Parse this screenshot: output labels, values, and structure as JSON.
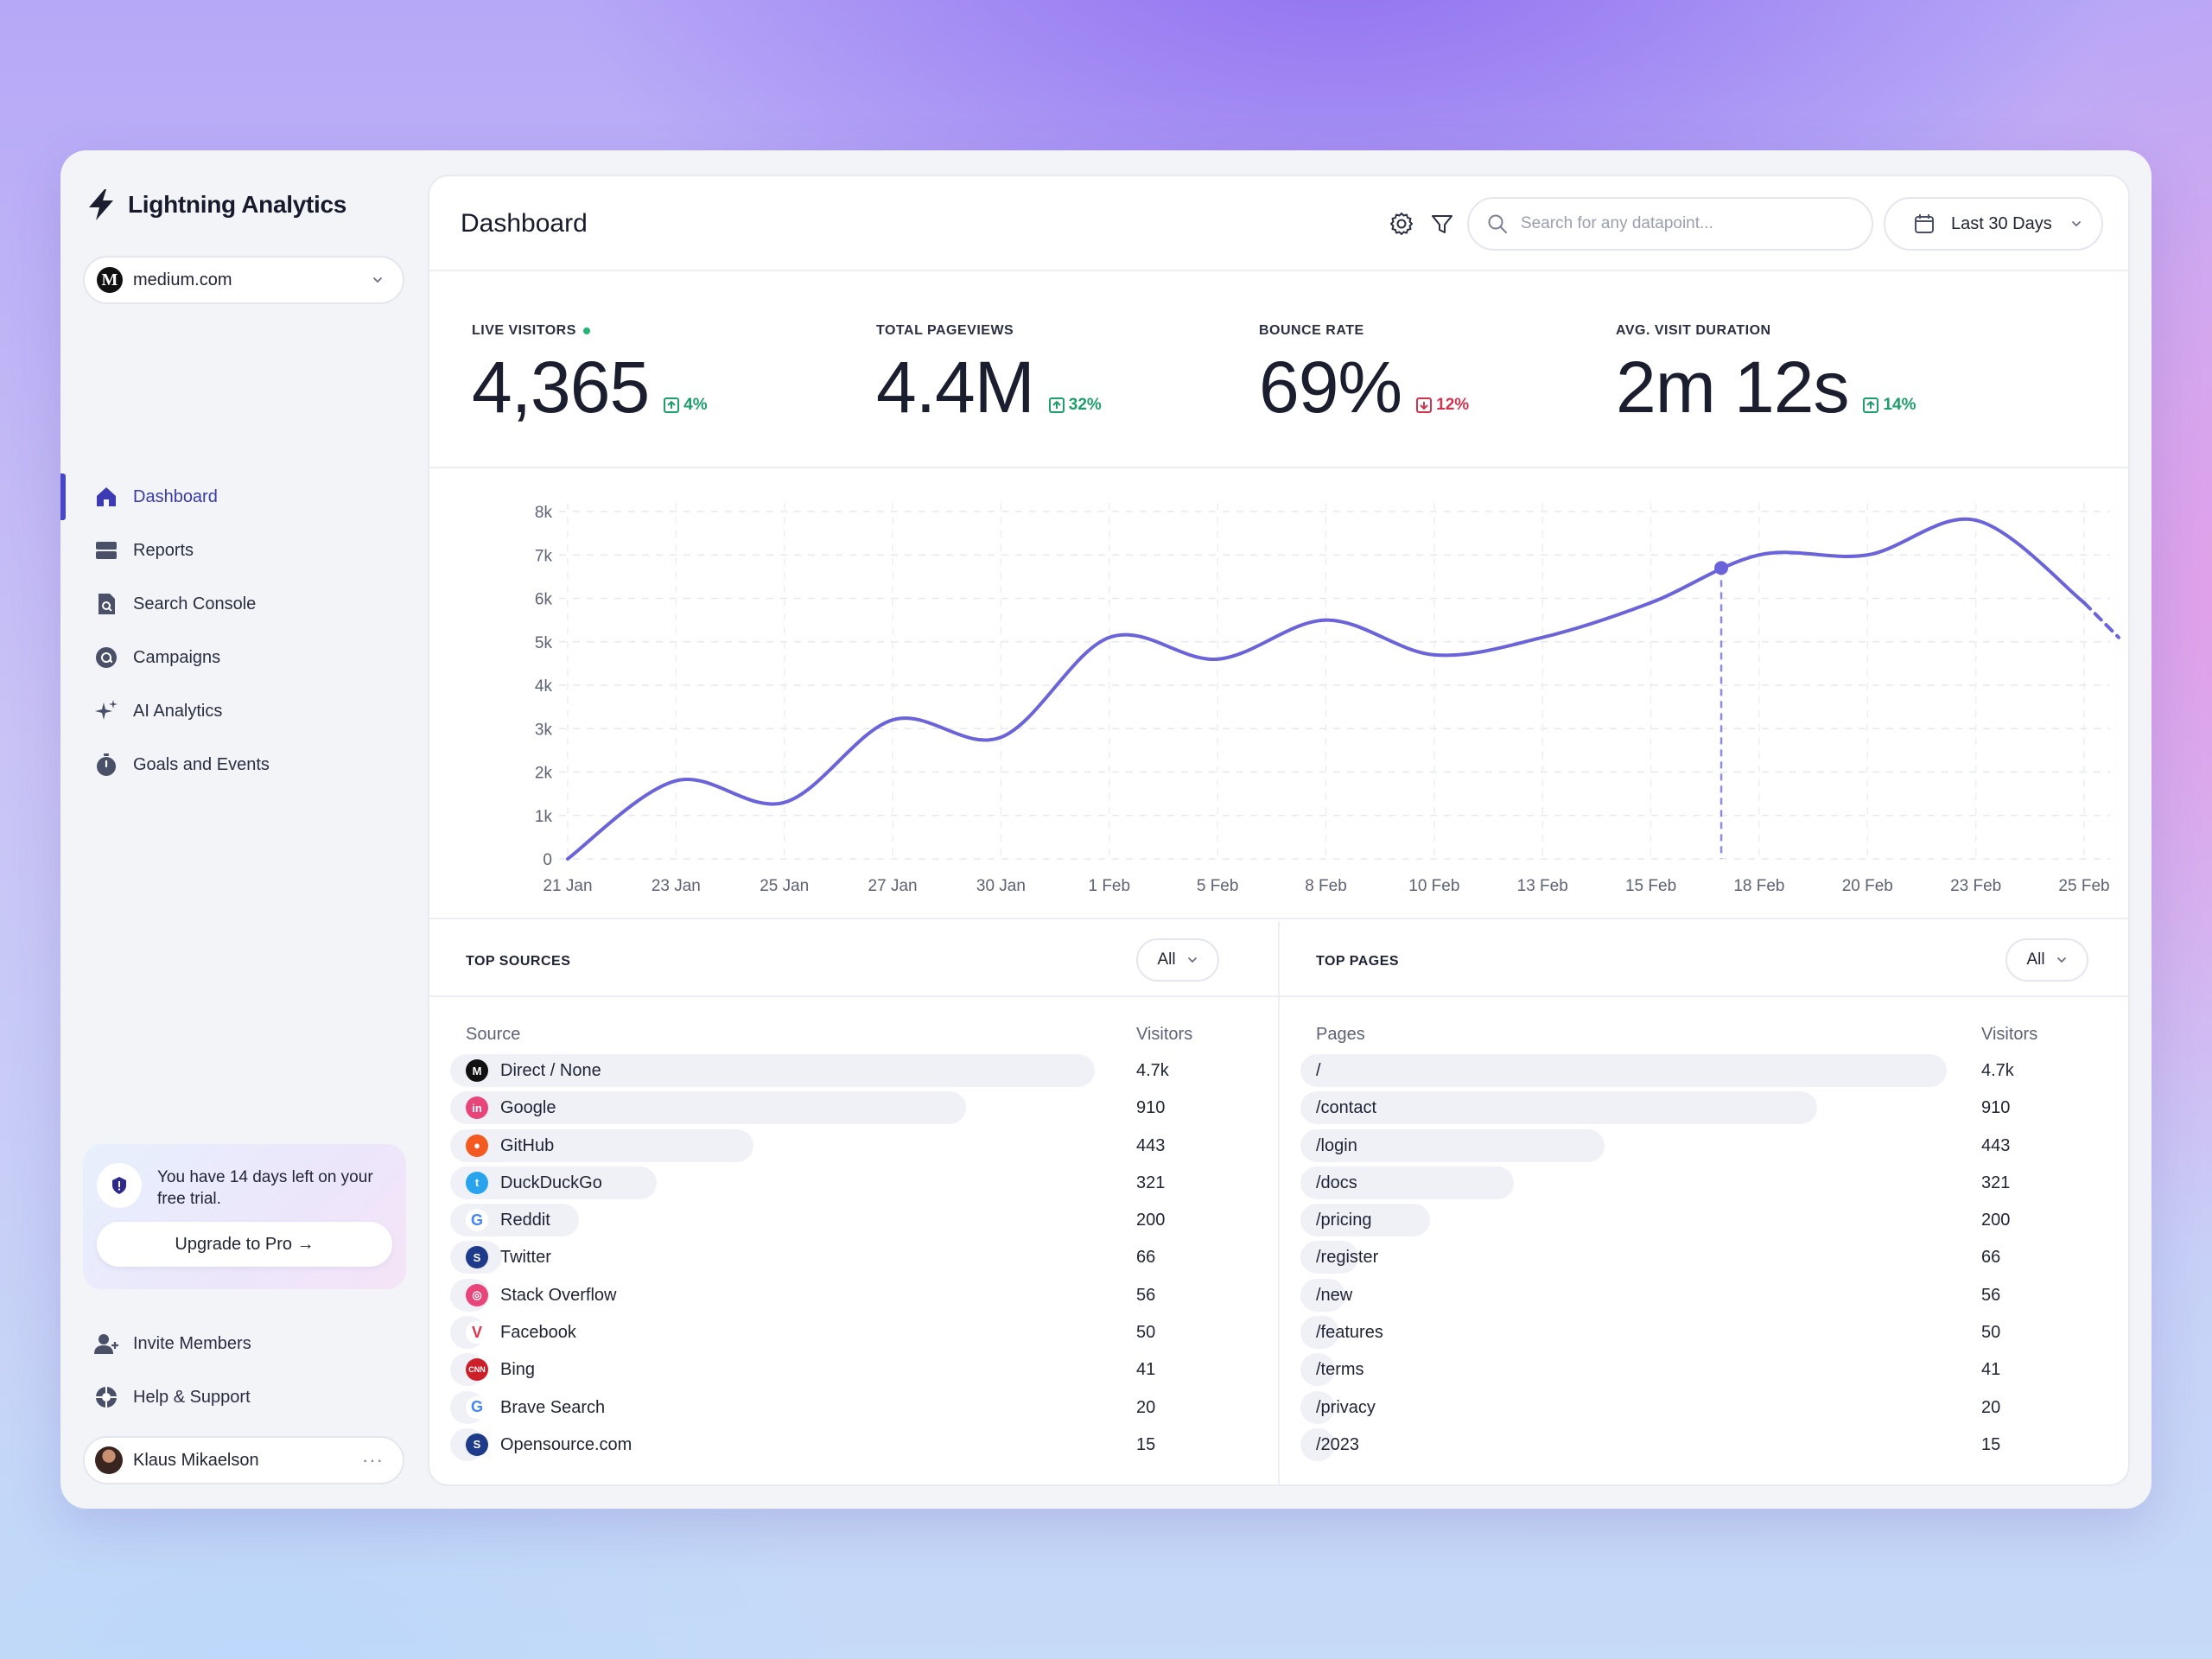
{
  "brand": {
    "name": "Lightning Analytics"
  },
  "site_select": {
    "value": "medium.com"
  },
  "nav": {
    "items": [
      {
        "label": "Dashboard",
        "icon": "home-icon",
        "active": true
      },
      {
        "label": "Reports",
        "icon": "reports-icon"
      },
      {
        "label": "Search Console",
        "icon": "search-console-icon"
      },
      {
        "label": "Campaigns",
        "icon": "campaigns-icon"
      },
      {
        "label": "AI Analytics",
        "icon": "sparkle-icon"
      },
      {
        "label": "Goals and Events",
        "icon": "stopwatch-icon"
      }
    ]
  },
  "trial": {
    "text": "You have 14 days left on your free trial.",
    "button": "Upgrade to Pro →"
  },
  "bottom_nav": {
    "items": [
      {
        "label": "Invite Members",
        "icon": "add-user-icon"
      },
      {
        "label": "Help & Support",
        "icon": "lifebuoy-icon"
      }
    ]
  },
  "user": {
    "name": "Klaus Mikaelson",
    "menu": "···"
  },
  "header": {
    "title": "Dashboard",
    "search_placeholder": "Search for any datapoint...",
    "date_range": "Last 30 Days"
  },
  "stats": [
    {
      "label": "LIVE VISITORS",
      "value": "4,365",
      "delta": "4%",
      "direction": "up",
      "live": true
    },
    {
      "label": "TOTAL PAGEVIEWS",
      "value": "4.4M",
      "delta": "32%",
      "direction": "up"
    },
    {
      "label": "BOUNCE RATE",
      "value": "69%",
      "delta": "12%",
      "direction": "down"
    },
    {
      "label": "AVG. VISIT DURATION",
      "value": "2m 12s",
      "delta": "14%",
      "direction": "up"
    }
  ],
  "colors": {
    "accent": "#6a63d9",
    "up": "#1e9e6a",
    "down": "#d2344f"
  },
  "chart_data": {
    "type": "line",
    "categories": [
      "21 Jan",
      "23 Jan",
      "25 Jan",
      "27 Jan",
      "30 Jan",
      "1 Feb",
      "5 Feb",
      "8 Feb",
      "10 Feb",
      "13 Feb",
      "15 Feb",
      "18 Feb",
      "20 Feb",
      "23 Feb",
      "25 Feb"
    ],
    "values": [
      0,
      1800,
      1300,
      3200,
      2800,
      5100,
      4600,
      5500,
      4700,
      5100,
      5900,
      7000,
      7000,
      7800,
      5900
    ],
    "projected_end": 5100,
    "highlight": {
      "x": 10.65,
      "y": 6700
    },
    "y_ticks": [
      "0",
      "1k",
      "2k",
      "3k",
      "4k",
      "5k",
      "6k",
      "7k",
      "8k"
    ],
    "ylim": [
      0,
      8000
    ],
    "grid": true
  },
  "sources": {
    "title": "TOP SOURCES",
    "filter": "All",
    "col_source": "Source",
    "col_visitors": "Visitors",
    "rows": [
      {
        "label": "Direct / None",
        "value": "4.7k",
        "share": 1.0,
        "icon": "medium-logo-icon",
        "color": "#111111",
        "glyph": "M"
      },
      {
        "label": "Google",
        "value": "910",
        "share": 0.8,
        "icon": "invision-logo-icon",
        "color": "#e8457a",
        "glyph": "in"
      },
      {
        "label": "GitHub",
        "value": "443",
        "share": 0.47,
        "icon": "reddit-logo-icon",
        "color": "#f45a1f",
        "glyph": "●"
      },
      {
        "label": "DuckDuckGo",
        "value": "321",
        "share": 0.32,
        "icon": "twitter-logo-icon",
        "color": "#2aa3ef",
        "glyph": "t"
      },
      {
        "label": "Reddit",
        "value": "200",
        "share": 0.2,
        "icon": "google-logo-icon",
        "color": "#ffffff",
        "glyph": "G"
      },
      {
        "label": "Twitter",
        "value": "66",
        "share": 0.08,
        "icon": "stripe-logo-icon",
        "color": "#1e3a8a",
        "glyph": "S"
      },
      {
        "label": "Stack Overflow",
        "value": "56",
        "share": 0.06,
        "icon": "dribbble-logo-icon",
        "color": "#e8457a",
        "glyph": "◎"
      },
      {
        "label": "Facebook",
        "value": "50",
        "share": 0.05,
        "icon": "vivaldi-logo-icon",
        "color": "#ffffff",
        "glyph": "V"
      },
      {
        "label": "Bing",
        "value": "41",
        "share": 0.04,
        "icon": "cnn-logo-icon",
        "color": "#cc1f2a",
        "glyph": "CNN"
      },
      {
        "label": "Brave Search",
        "value": "20",
        "share": 0.02,
        "icon": "google-logo-icon",
        "color": "#ffffff",
        "glyph": "G"
      },
      {
        "label": "Opensource.com",
        "value": "15",
        "share": 0.01,
        "icon": "stripe-logo-icon",
        "color": "#1e3a8a",
        "glyph": "S"
      }
    ]
  },
  "pages": {
    "title": "TOP PAGES",
    "filter": "All",
    "col_pages": "Pages",
    "col_visitors": "Visitors",
    "rows": [
      {
        "label": "/",
        "value": "4.7k",
        "share": 1.0
      },
      {
        "label": "/contact",
        "value": "910",
        "share": 0.8
      },
      {
        "label": "/login",
        "value": "443",
        "share": 0.47
      },
      {
        "label": "/docs",
        "value": "321",
        "share": 0.33
      },
      {
        "label": "/pricing",
        "value": "200",
        "share": 0.2
      },
      {
        "label": "/register",
        "value": "66",
        "share": 0.09
      },
      {
        "label": "/new",
        "value": "56",
        "share": 0.07
      },
      {
        "label": "/features",
        "value": "50",
        "share": 0.06
      },
      {
        "label": "/terms",
        "value": "41",
        "share": 0.05
      },
      {
        "label": "/privacy",
        "value": "20",
        "share": 0.04
      },
      {
        "label": "/2023",
        "value": "15",
        "share": 0.03
      }
    ]
  }
}
